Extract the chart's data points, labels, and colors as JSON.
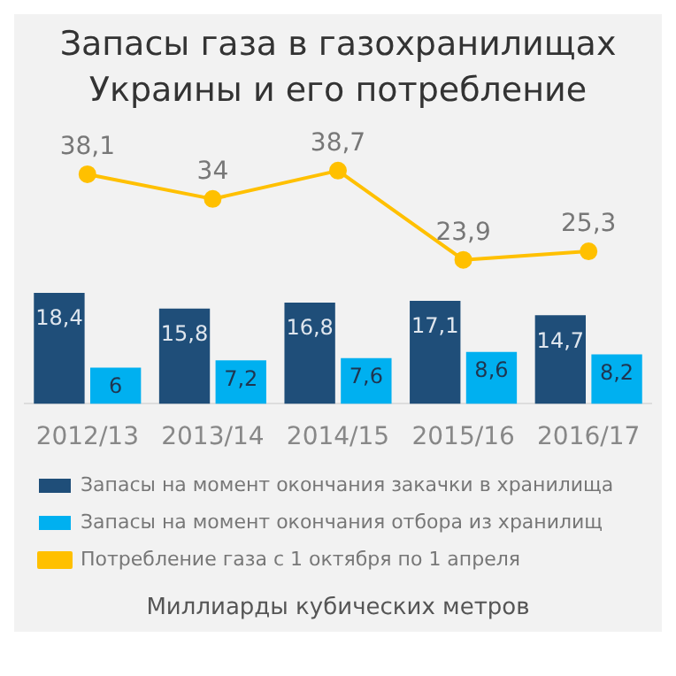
{
  "chart_data": {
    "type": "bar",
    "title": "Запасы газа в газохранилищах Украины и его потребление",
    "tick_labels": "x",
    "categories": [
      "2012/13",
      "2013/14",
      "2014/15",
      "2015/16",
      "2016/17"
    ],
    "series": [
      {
        "name": "Запасы на момент окончания закачки в хранилища",
        "color": "#1f4e79",
        "values": [
          18.4,
          15.8,
          16.8,
          17.1,
          14.7
        ],
        "value_labels": [
          "18,4",
          "15,8",
          "16,8",
          "17,1",
          "14,7"
        ]
      },
      {
        "name": "Запасы на момент окончания отбора из хранилищ",
        "color": "#00b0f0",
        "values": [
          6,
          7.2,
          7.6,
          8.6,
          8.2
        ],
        "value_labels": [
          "6",
          "7,2",
          "7,6",
          "8,6",
          "8,2"
        ]
      },
      {
        "name": "Потребление газа с 1 октября по 1 апреля",
        "type": "line",
        "color": "#ffc000",
        "values": [
          38.1,
          34,
          38.7,
          23.9,
          25.3
        ],
        "value_labels": [
          "38,1",
          "34",
          "38,7",
          "23,9",
          "25,3"
        ]
      }
    ],
    "legend": "bottom",
    "marker": "circle",
    "grid": false,
    "annotations": [
      "Миллиарды кубических метров"
    ]
  }
}
